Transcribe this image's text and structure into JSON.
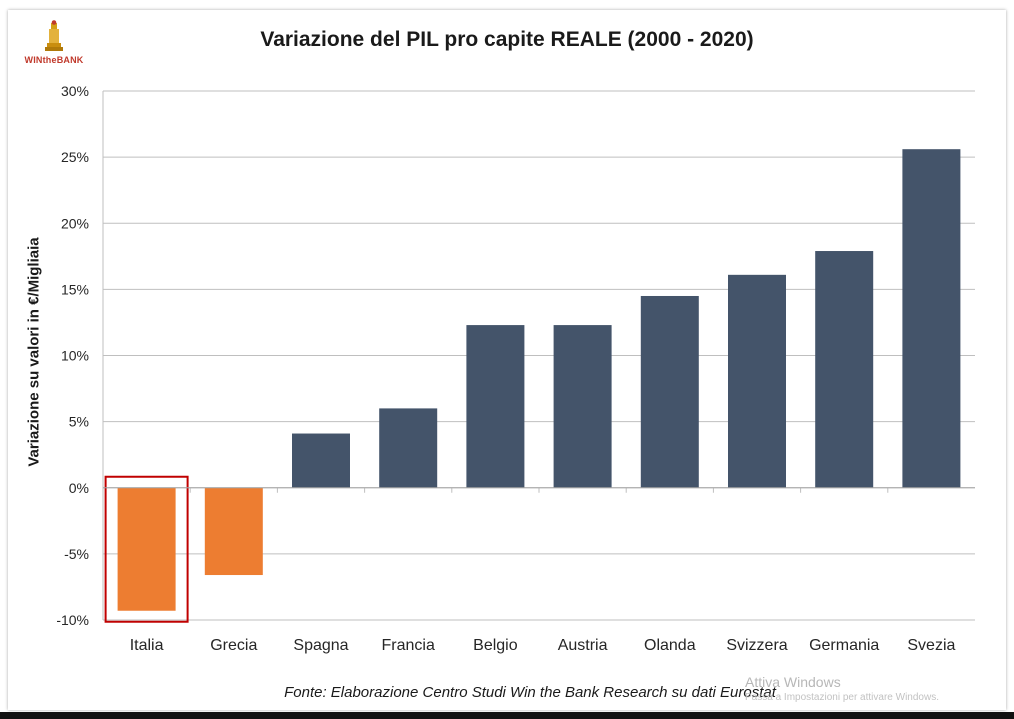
{
  "logo": {
    "text": "WINtheBANK"
  },
  "chart_data": {
    "type": "bar",
    "title": "Variazione del PIL pro capite REALE (2000 - 2020)",
    "xlabel": "",
    "ylabel": "Variazione su valori in €/Migliaia",
    "categories": [
      "Italia",
      "Grecia",
      "Spagna",
      "Francia",
      "Belgio",
      "Austria",
      "Olanda",
      "Svizzera",
      "Germania",
      "Svezia"
    ],
    "values": [
      -9.3,
      -6.6,
      4.1,
      6.0,
      12.3,
      12.3,
      14.5,
      16.1,
      17.9,
      25.6
    ],
    "ylim": [
      -10,
      30
    ],
    "yticks": [
      30,
      25,
      20,
      15,
      10,
      5,
      0,
      -5,
      -10
    ],
    "ytick_labels": [
      "30%",
      "25%",
      "20%",
      "15%",
      "10%",
      "5%",
      "0%",
      "-5%",
      "-10%"
    ],
    "grid": true,
    "colors": {
      "negative": "#ED7D31",
      "positive": "#44546A",
      "grid": "#BFBFBF",
      "highlight": "#C00000"
    },
    "highlight_category": "Italia"
  },
  "source_note": "Fonte: Elaborazione Centro Studi Win the Bank Research su dati Eurostat",
  "os_watermark": {
    "line1": "Attiva Windows",
    "line2": "Passa a Impostazioni per attivare Windows."
  }
}
